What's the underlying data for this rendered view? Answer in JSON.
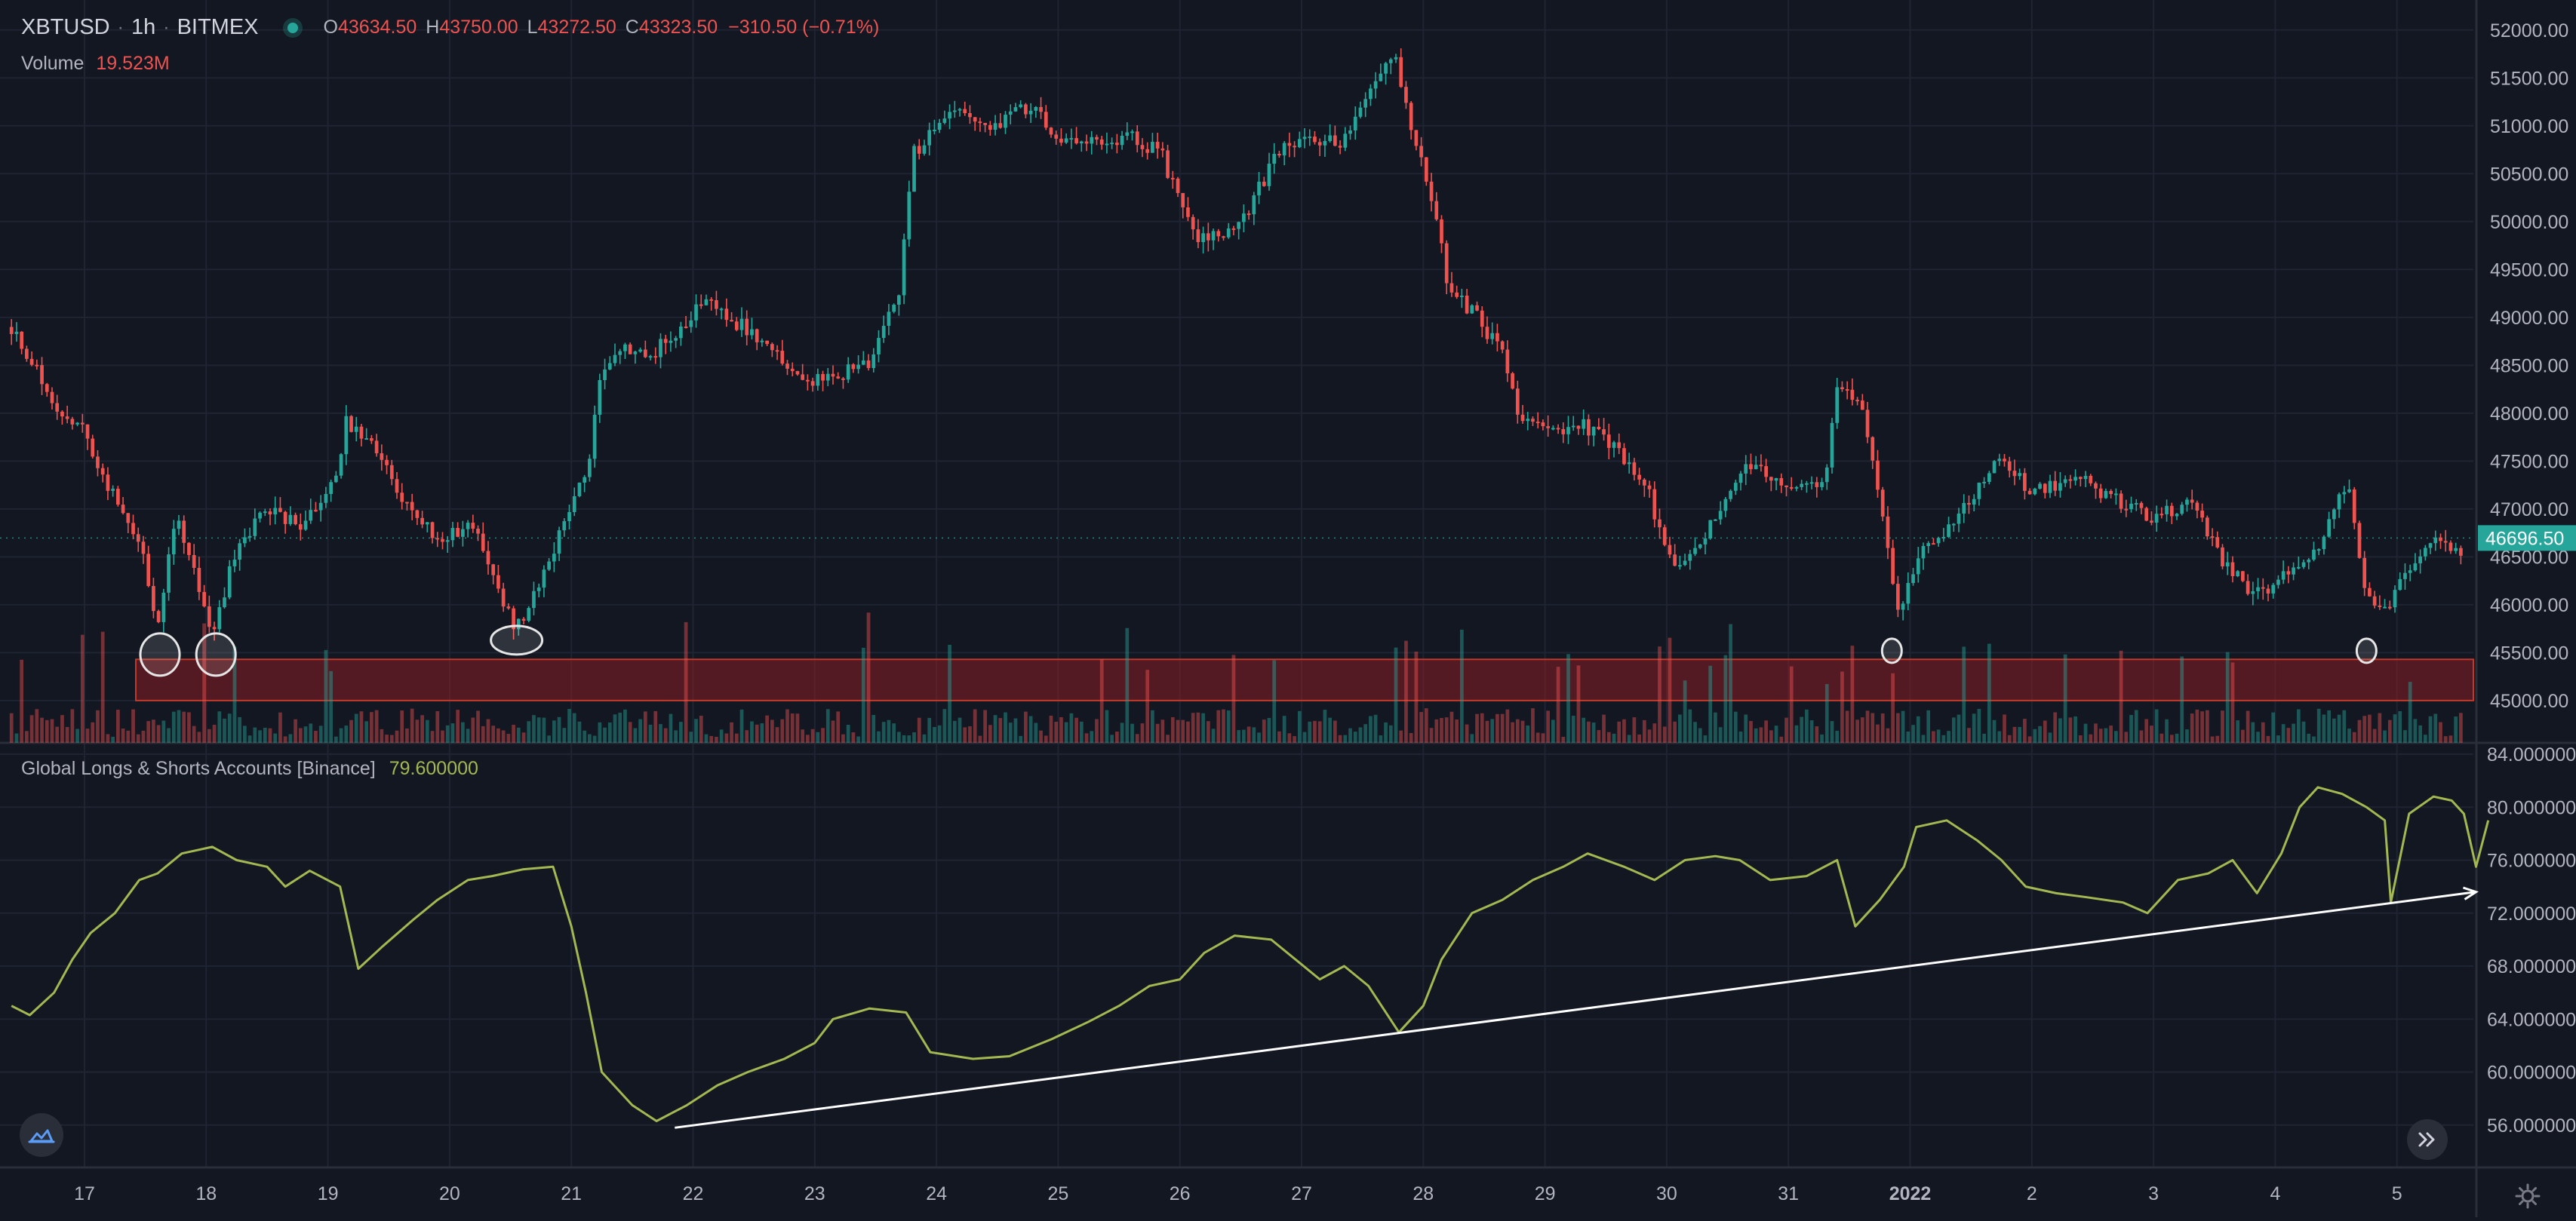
{
  "header": {
    "symbol": "XBTUSD",
    "interval": "1h",
    "exchange": "BITMEX",
    "open_key": "O",
    "open": "43634.50",
    "high_key": "H",
    "high": "43750.00",
    "low_key": "L",
    "low": "43272.50",
    "close_key": "C",
    "close": "43323.50",
    "change": "−310.50 (−0.71%)"
  },
  "volume_legend": {
    "label": "Volume",
    "value": "19.523M"
  },
  "indicator_legend": {
    "title": "Global Longs & Shorts Accounts [Binance]",
    "value": "79.600000"
  },
  "colors": {
    "background": "#131722",
    "grid": "#1f2433",
    "up": "#26a69a",
    "down": "#ef5350",
    "indicator_line": "#a4b852",
    "price_badge": "#26a69a",
    "annotation": "#e6e6e6",
    "zone": "#8b1d25"
  },
  "icons": {
    "logo": "tradingview-cloud-icon",
    "scroll": "double-chevron-right-icon",
    "settings": "gear-icon"
  },
  "chart_data": [
    {
      "type": "candlestick",
      "title": "XBTUSD · 1h · BITMEX",
      "x_labels": [
        "17",
        "18",
        "19",
        "20",
        "21",
        "22",
        "23",
        "24",
        "25",
        "26",
        "27",
        "28",
        "29",
        "30",
        "31",
        "2022",
        "2",
        "3",
        "4",
        "5"
      ],
      "y_ticks": [
        "52000.00",
        "51500.00",
        "51000.00",
        "50500.00",
        "50000.00",
        "49500.00",
        "49000.00",
        "48500.00",
        "48000.00",
        "47500.00",
        "47000.00",
        "46500.00",
        "46000.00",
        "45500.00",
        "45000.00"
      ],
      "ylim": [
        44700,
        52250
      ],
      "last_price": "46696.50",
      "approx_close_path": [
        {
          "x": 16.4,
          "y": 48900
        },
        {
          "x": 16.6,
          "y": 48450
        },
        {
          "x": 16.8,
          "y": 48000
        },
        {
          "x": 17.0,
          "y": 47800
        },
        {
          "x": 17.2,
          "y": 47200
        },
        {
          "x": 17.45,
          "y": 46700
        },
        {
          "x": 17.6,
          "y": 45800
        },
        {
          "x": 17.75,
          "y": 46900
        },
        {
          "x": 17.9,
          "y": 46400
        },
        {
          "x": 18.05,
          "y": 45700
        },
        {
          "x": 18.25,
          "y": 46600
        },
        {
          "x": 18.5,
          "y": 47000
        },
        {
          "x": 18.8,
          "y": 46800
        },
        {
          "x": 19.05,
          "y": 47300
        },
        {
          "x": 19.15,
          "y": 47900
        },
        {
          "x": 19.4,
          "y": 47600
        },
        {
          "x": 19.6,
          "y": 47100
        },
        {
          "x": 19.9,
          "y": 46700
        },
        {
          "x": 20.2,
          "y": 46800
        },
        {
          "x": 20.35,
          "y": 46300
        },
        {
          "x": 20.55,
          "y": 45750
        },
        {
          "x": 20.75,
          "y": 46200
        },
        {
          "x": 20.95,
          "y": 46900
        },
        {
          "x": 21.15,
          "y": 47500
        },
        {
          "x": 21.25,
          "y": 48500
        },
        {
          "x": 21.45,
          "y": 48700
        },
        {
          "x": 21.65,
          "y": 48600
        },
        {
          "x": 21.9,
          "y": 48900
        },
        {
          "x": 22.1,
          "y": 49200
        },
        {
          "x": 22.35,
          "y": 48950
        },
        {
          "x": 22.65,
          "y": 48700
        },
        {
          "x": 22.95,
          "y": 48300
        },
        {
          "x": 23.2,
          "y": 48400
        },
        {
          "x": 23.45,
          "y": 48500
        },
        {
          "x": 23.7,
          "y": 49300
        },
        {
          "x": 23.8,
          "y": 50700
        },
        {
          "x": 24.0,
          "y": 51000
        },
        {
          "x": 24.2,
          "y": 51150
        },
        {
          "x": 24.45,
          "y": 51000
        },
        {
          "x": 24.75,
          "y": 51200
        },
        {
          "x": 25.0,
          "y": 50900
        },
        {
          "x": 25.3,
          "y": 50800
        },
        {
          "x": 25.6,
          "y": 50900
        },
        {
          "x": 25.85,
          "y": 50700
        },
        {
          "x": 26.0,
          "y": 50200
        },
        {
          "x": 26.15,
          "y": 49800
        },
        {
          "x": 26.35,
          "y": 49900
        },
        {
          "x": 26.55,
          "y": 50100
        },
        {
          "x": 26.8,
          "y": 50700
        },
        {
          "x": 27.05,
          "y": 50900
        },
        {
          "x": 27.3,
          "y": 50800
        },
        {
          "x": 27.55,
          "y": 51300
        },
        {
          "x": 27.75,
          "y": 51800
        },
        {
          "x": 27.9,
          "y": 51000
        },
        {
          "x": 28.1,
          "y": 50100
        },
        {
          "x": 28.2,
          "y": 49300
        },
        {
          "x": 28.45,
          "y": 49000
        },
        {
          "x": 28.65,
          "y": 48600
        },
        {
          "x": 28.8,
          "y": 47900
        },
        {
          "x": 29.0,
          "y": 47800
        },
        {
          "x": 29.3,
          "y": 47900
        },
        {
          "x": 29.6,
          "y": 47600
        },
        {
          "x": 29.85,
          "y": 47200
        },
        {
          "x": 30.0,
          "y": 46500
        },
        {
          "x": 30.15,
          "y": 46400
        },
        {
          "x": 30.45,
          "y": 47000
        },
        {
          "x": 30.7,
          "y": 47500
        },
        {
          "x": 31.0,
          "y": 47200
        },
        {
          "x": 31.3,
          "y": 47300
        },
        {
          "x": 31.4,
          "y": 48300
        },
        {
          "x": 31.6,
          "y": 48100
        },
        {
          "x": 31.8,
          "y": 46800
        },
        {
          "x": 31.9,
          "y": 45900
        },
        {
          "x": 32.1,
          "y": 46600
        },
        {
          "x": 32.4,
          "y": 46900
        },
        {
          "x": 32.7,
          "y": 47500
        },
        {
          "x": 33.0,
          "y": 47200
        },
        {
          "x": 33.4,
          "y": 47300
        },
        {
          "x": 33.7,
          "y": 47100
        },
        {
          "x": 34.0,
          "y": 46900
        },
        {
          "x": 34.3,
          "y": 47100
        },
        {
          "x": 34.55,
          "y": 46500
        },
        {
          "x": 34.8,
          "y": 46100
        },
        {
          "x": 35.1,
          "y": 46300
        },
        {
          "x": 35.4,
          "y": 46700
        },
        {
          "x": 35.6,
          "y": 47300
        },
        {
          "x": 35.75,
          "y": 46100
        },
        {
          "x": 35.9,
          "y": 45900
        },
        {
          "x": 36.1,
          "y": 46400
        },
        {
          "x": 36.35,
          "y": 46700
        },
        {
          "x": 36.55,
          "y": 46500
        }
      ],
      "support_zone": [
        45000,
        45430
      ],
      "annotations": [
        {
          "type": "circle",
          "x": 17.62,
          "y": 45480
        },
        {
          "type": "circle",
          "x": 18.08,
          "y": 45480
        },
        {
          "type": "circle",
          "x": 20.55,
          "y": 45630
        },
        {
          "type": "circle",
          "x": 31.85,
          "y": 45520
        },
        {
          "type": "circle",
          "x": 35.75,
          "y": 45520
        }
      ]
    },
    {
      "type": "line",
      "title": "Global Longs & Shorts Accounts [Binance]",
      "y_ticks": [
        "84.000000",
        "80.000000",
        "76.000000",
        "72.000000",
        "68.000000",
        "64.000000",
        "60.000000",
        "56.000000"
      ],
      "ylim": [
        52.8,
        84.0
      ],
      "last_value": "79.600000",
      "series": [
        {
          "values": [
            {
              "x": 16.4,
              "y": 65.0
            },
            {
              "x": 16.55,
              "y": 64.3
            },
            {
              "x": 16.75,
              "y": 66.0
            },
            {
              "x": 16.9,
              "y": 68.5
            },
            {
              "x": 17.05,
              "y": 70.5
            },
            {
              "x": 17.25,
              "y": 72.0
            },
            {
              "x": 17.45,
              "y": 74.5
            },
            {
              "x": 17.6,
              "y": 75.0
            },
            {
              "x": 17.8,
              "y": 76.5
            },
            {
              "x": 18.05,
              "y": 77.0
            },
            {
              "x": 18.25,
              "y": 76.0
            },
            {
              "x": 18.5,
              "y": 75.5
            },
            {
              "x": 18.65,
              "y": 74.0
            },
            {
              "x": 18.85,
              "y": 75.2
            },
            {
              "x": 19.1,
              "y": 74.0
            },
            {
              "x": 19.25,
              "y": 67.8
            },
            {
              "x": 19.45,
              "y": 69.5
            },
            {
              "x": 19.7,
              "y": 71.5
            },
            {
              "x": 19.9,
              "y": 73.0
            },
            {
              "x": 20.15,
              "y": 74.5
            },
            {
              "x": 20.35,
              "y": 74.8
            },
            {
              "x": 20.6,
              "y": 75.3
            },
            {
              "x": 20.85,
              "y": 75.5
            },
            {
              "x": 21.0,
              "y": 71.0
            },
            {
              "x": 21.12,
              "y": 66.0
            },
            {
              "x": 21.25,
              "y": 60.0
            },
            {
              "x": 21.5,
              "y": 57.5
            },
            {
              "x": 21.7,
              "y": 56.3
            },
            {
              "x": 21.95,
              "y": 57.5
            },
            {
              "x": 22.2,
              "y": 59.0
            },
            {
              "x": 22.45,
              "y": 60.0
            },
            {
              "x": 22.75,
              "y": 61.0
            },
            {
              "x": 23.0,
              "y": 62.2
            },
            {
              "x": 23.15,
              "y": 64.0
            },
            {
              "x": 23.45,
              "y": 64.8
            },
            {
              "x": 23.75,
              "y": 64.5
            },
            {
              "x": 23.95,
              "y": 61.5
            },
            {
              "x": 24.3,
              "y": 61.0
            },
            {
              "x": 24.6,
              "y": 61.2
            },
            {
              "x": 24.95,
              "y": 62.5
            },
            {
              "x": 25.25,
              "y": 63.8
            },
            {
              "x": 25.5,
              "y": 65.0
            },
            {
              "x": 25.75,
              "y": 66.5
            },
            {
              "x": 26.0,
              "y": 67.0
            },
            {
              "x": 26.2,
              "y": 69.0
            },
            {
              "x": 26.45,
              "y": 70.3
            },
            {
              "x": 26.75,
              "y": 70.0
            },
            {
              "x": 26.95,
              "y": 68.5
            },
            {
              "x": 27.15,
              "y": 67.0
            },
            {
              "x": 27.35,
              "y": 68.0
            },
            {
              "x": 27.55,
              "y": 66.5
            },
            {
              "x": 27.8,
              "y": 63.0
            },
            {
              "x": 28.0,
              "y": 65.0
            },
            {
              "x": 28.15,
              "y": 68.5
            },
            {
              "x": 28.4,
              "y": 72.0
            },
            {
              "x": 28.65,
              "y": 73.0
            },
            {
              "x": 28.9,
              "y": 74.5
            },
            {
              "x": 29.15,
              "y": 75.5
            },
            {
              "x": 29.35,
              "y": 76.5
            },
            {
              "x": 29.65,
              "y": 75.5
            },
            {
              "x": 29.9,
              "y": 74.5
            },
            {
              "x": 30.15,
              "y": 76.0
            },
            {
              "x": 30.4,
              "y": 76.3
            },
            {
              "x": 30.6,
              "y": 76.0
            },
            {
              "x": 30.85,
              "y": 74.5
            },
            {
              "x": 31.15,
              "y": 74.8
            },
            {
              "x": 31.4,
              "y": 76.0
            },
            {
              "x": 31.55,
              "y": 71.0
            },
            {
              "x": 31.75,
              "y": 73.0
            },
            {
              "x": 31.95,
              "y": 75.5
            },
            {
              "x": 32.05,
              "y": 78.5
            },
            {
              "x": 32.3,
              "y": 79.0
            },
            {
              "x": 32.55,
              "y": 77.5
            },
            {
              "x": 32.75,
              "y": 76.0
            },
            {
              "x": 32.95,
              "y": 74.0
            },
            {
              "x": 33.2,
              "y": 73.5
            },
            {
              "x": 33.45,
              "y": 73.2
            },
            {
              "x": 33.75,
              "y": 72.8
            },
            {
              "x": 33.95,
              "y": 72.0
            },
            {
              "x": 34.2,
              "y": 74.5
            },
            {
              "x": 34.45,
              "y": 75.0
            },
            {
              "x": 34.65,
              "y": 76.0
            },
            {
              "x": 34.85,
              "y": 73.5
            },
            {
              "x": 35.05,
              "y": 76.5
            },
            {
              "x": 35.2,
              "y": 80.0
            },
            {
              "x": 35.35,
              "y": 81.5
            },
            {
              "x": 35.55,
              "y": 81.0
            },
            {
              "x": 35.75,
              "y": 80.0
            },
            {
              "x": 35.9,
              "y": 79.0
            },
            {
              "x": 35.95,
              "y": 72.8
            },
            {
              "x": 36.1,
              "y": 79.5
            },
            {
              "x": 36.3,
              "y": 80.8
            },
            {
              "x": 36.45,
              "y": 80.5
            },
            {
              "x": 36.55,
              "y": 79.5
            },
            {
              "x": 36.65,
              "y": 75.5
            },
            {
              "x": 36.75,
              "y": 79.0
            }
          ]
        }
      ],
      "trendline": {
        "from": {
          "x": 21.85,
          "y": 55.8
        },
        "to": {
          "x": 36.65,
          "y": 73.6
        }
      }
    }
  ]
}
